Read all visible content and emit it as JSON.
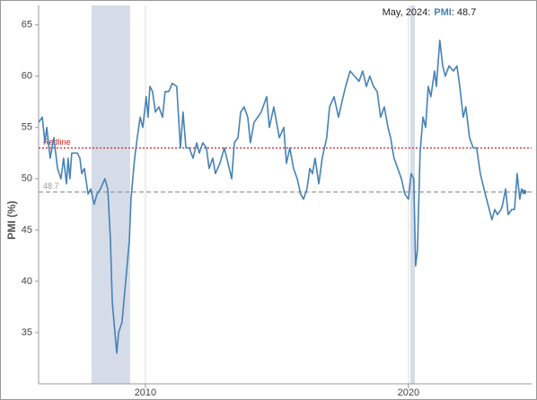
{
  "chart_data": {
    "type": "line",
    "ylabel": "PMI (%)",
    "annotation": {
      "date": "May, 2024:",
      "text": ": 48.7"
    },
    "xlim": [
      2005.94,
      2024.68
    ],
    "ylim": [
      30.0,
      66.9
    ],
    "xticks": [
      2010,
      2020
    ],
    "yticks": [
      35,
      40,
      45,
      50,
      55,
      60,
      65
    ],
    "shaded_ranges": [
      [
        2007.95,
        2009.42
      ],
      [
        2020.07,
        2020.24
      ]
    ],
    "reference_lines": [
      {
        "value": 53,
        "label": "Redline",
        "color": "#e02020"
      },
      {
        "value": 48.7,
        "color": "#999999"
      }
    ],
    "x": [
      2005.94,
      2006.08,
      2006.18,
      2006.25,
      2006.38,
      2006.52,
      2006.66,
      2006.79,
      2006.89,
      2007.0,
      2007.06,
      2007.13,
      2007.2,
      2007.41,
      2007.51,
      2007.58,
      2007.68,
      2007.82,
      2007.92,
      2008.05,
      2008.16,
      2008.29,
      2008.46,
      2008.57,
      2008.67,
      2008.74,
      2008.84,
      2008.91,
      2008.98,
      2009.11,
      2009.25,
      2009.39,
      2009.45,
      2009.59,
      2009.69,
      2009.8,
      2009.9,
      2010.03,
      2010.1,
      2010.17,
      2010.27,
      2010.38,
      2010.51,
      2010.65,
      2010.75,
      2010.89,
      2011.02,
      2011.19,
      2011.33,
      2011.43,
      2011.54,
      2011.67,
      2011.81,
      2011.95,
      2012.05,
      2012.18,
      2012.32,
      2012.42,
      2012.56,
      2012.66,
      2012.83,
      2013.0,
      2013.28,
      2013.38,
      2013.52,
      2013.62,
      2013.75,
      2013.89,
      2013.99,
      2014.13,
      2014.27,
      2014.4,
      2014.61,
      2014.71,
      2014.88,
      2015.09,
      2015.26,
      2015.36,
      2015.49,
      2015.63,
      2015.77,
      2015.9,
      2016.01,
      2016.14,
      2016.25,
      2016.35,
      2016.45,
      2016.59,
      2016.72,
      2016.89,
      2017.0,
      2017.17,
      2017.34,
      2017.47,
      2017.61,
      2017.78,
      2017.95,
      2018.12,
      2018.26,
      2018.4,
      2018.53,
      2018.67,
      2018.81,
      2018.94,
      2019.08,
      2019.22,
      2019.32,
      2019.45,
      2019.59,
      2019.73,
      2019.86,
      2020.0,
      2020.1,
      2020.2,
      2020.27,
      2020.34,
      2020.44,
      2020.55,
      2020.65,
      2020.75,
      2020.85,
      2020.99,
      2021.06,
      2021.19,
      2021.3,
      2021.4,
      2021.54,
      2021.71,
      2021.84,
      2021.95,
      2022.08,
      2022.18,
      2022.32,
      2022.46,
      2022.59,
      2022.73,
      2022.87,
      2022.97,
      2023.07,
      2023.17,
      2023.28,
      2023.38,
      2023.52,
      2023.58,
      2023.69,
      2023.79,
      2023.92,
      2024.03,
      2024.13,
      2024.23,
      2024.3,
      2024.4
    ],
    "series": [
      {
        "name": "PMI",
        "color": "#4682b4",
        "values": [
          55.5,
          56,
          53.5,
          55,
          52,
          54,
          51,
          50,
          52,
          49.5,
          52,
          50,
          52.5,
          52.5,
          52,
          50.5,
          51,
          48.5,
          49,
          47.5,
          48.5,
          49,
          50,
          49,
          44,
          38,
          35,
          33,
          35,
          36,
          40,
          44,
          48,
          52,
          54,
          56,
          55,
          58,
          56,
          59,
          58.5,
          56.5,
          57,
          56,
          58.5,
          58.5,
          59.3,
          59,
          53,
          56.5,
          53,
          53,
          52,
          53.5,
          52.5,
          53.5,
          53,
          51,
          52,
          50.5,
          51.5,
          53,
          50,
          53.5,
          54,
          56.5,
          57,
          56,
          53.5,
          55.5,
          56,
          56.5,
          58,
          55,
          57,
          54,
          55,
          51.5,
          53,
          51,
          50,
          48.5,
          48,
          49,
          51,
          50.5,
          52,
          49.5,
          52,
          54,
          57,
          58,
          56,
          57.5,
          59,
          60.5,
          60,
          59.5,
          60.5,
          59,
          60,
          59,
          58.5,
          56,
          57,
          55,
          54,
          52,
          51,
          50,
          48.5,
          48,
          50.5,
          50,
          41.5,
          43,
          52.5,
          56,
          55,
          59,
          58,
          60.5,
          59,
          63.5,
          61,
          60,
          61,
          60.5,
          61,
          59,
          56,
          57,
          54,
          53,
          53,
          50.5,
          49,
          48,
          47,
          46,
          47,
          46.5,
          47,
          47.5,
          49,
          46.5,
          47,
          47,
          50.5,
          48,
          49,
          48.7
        ]
      }
    ]
  }
}
